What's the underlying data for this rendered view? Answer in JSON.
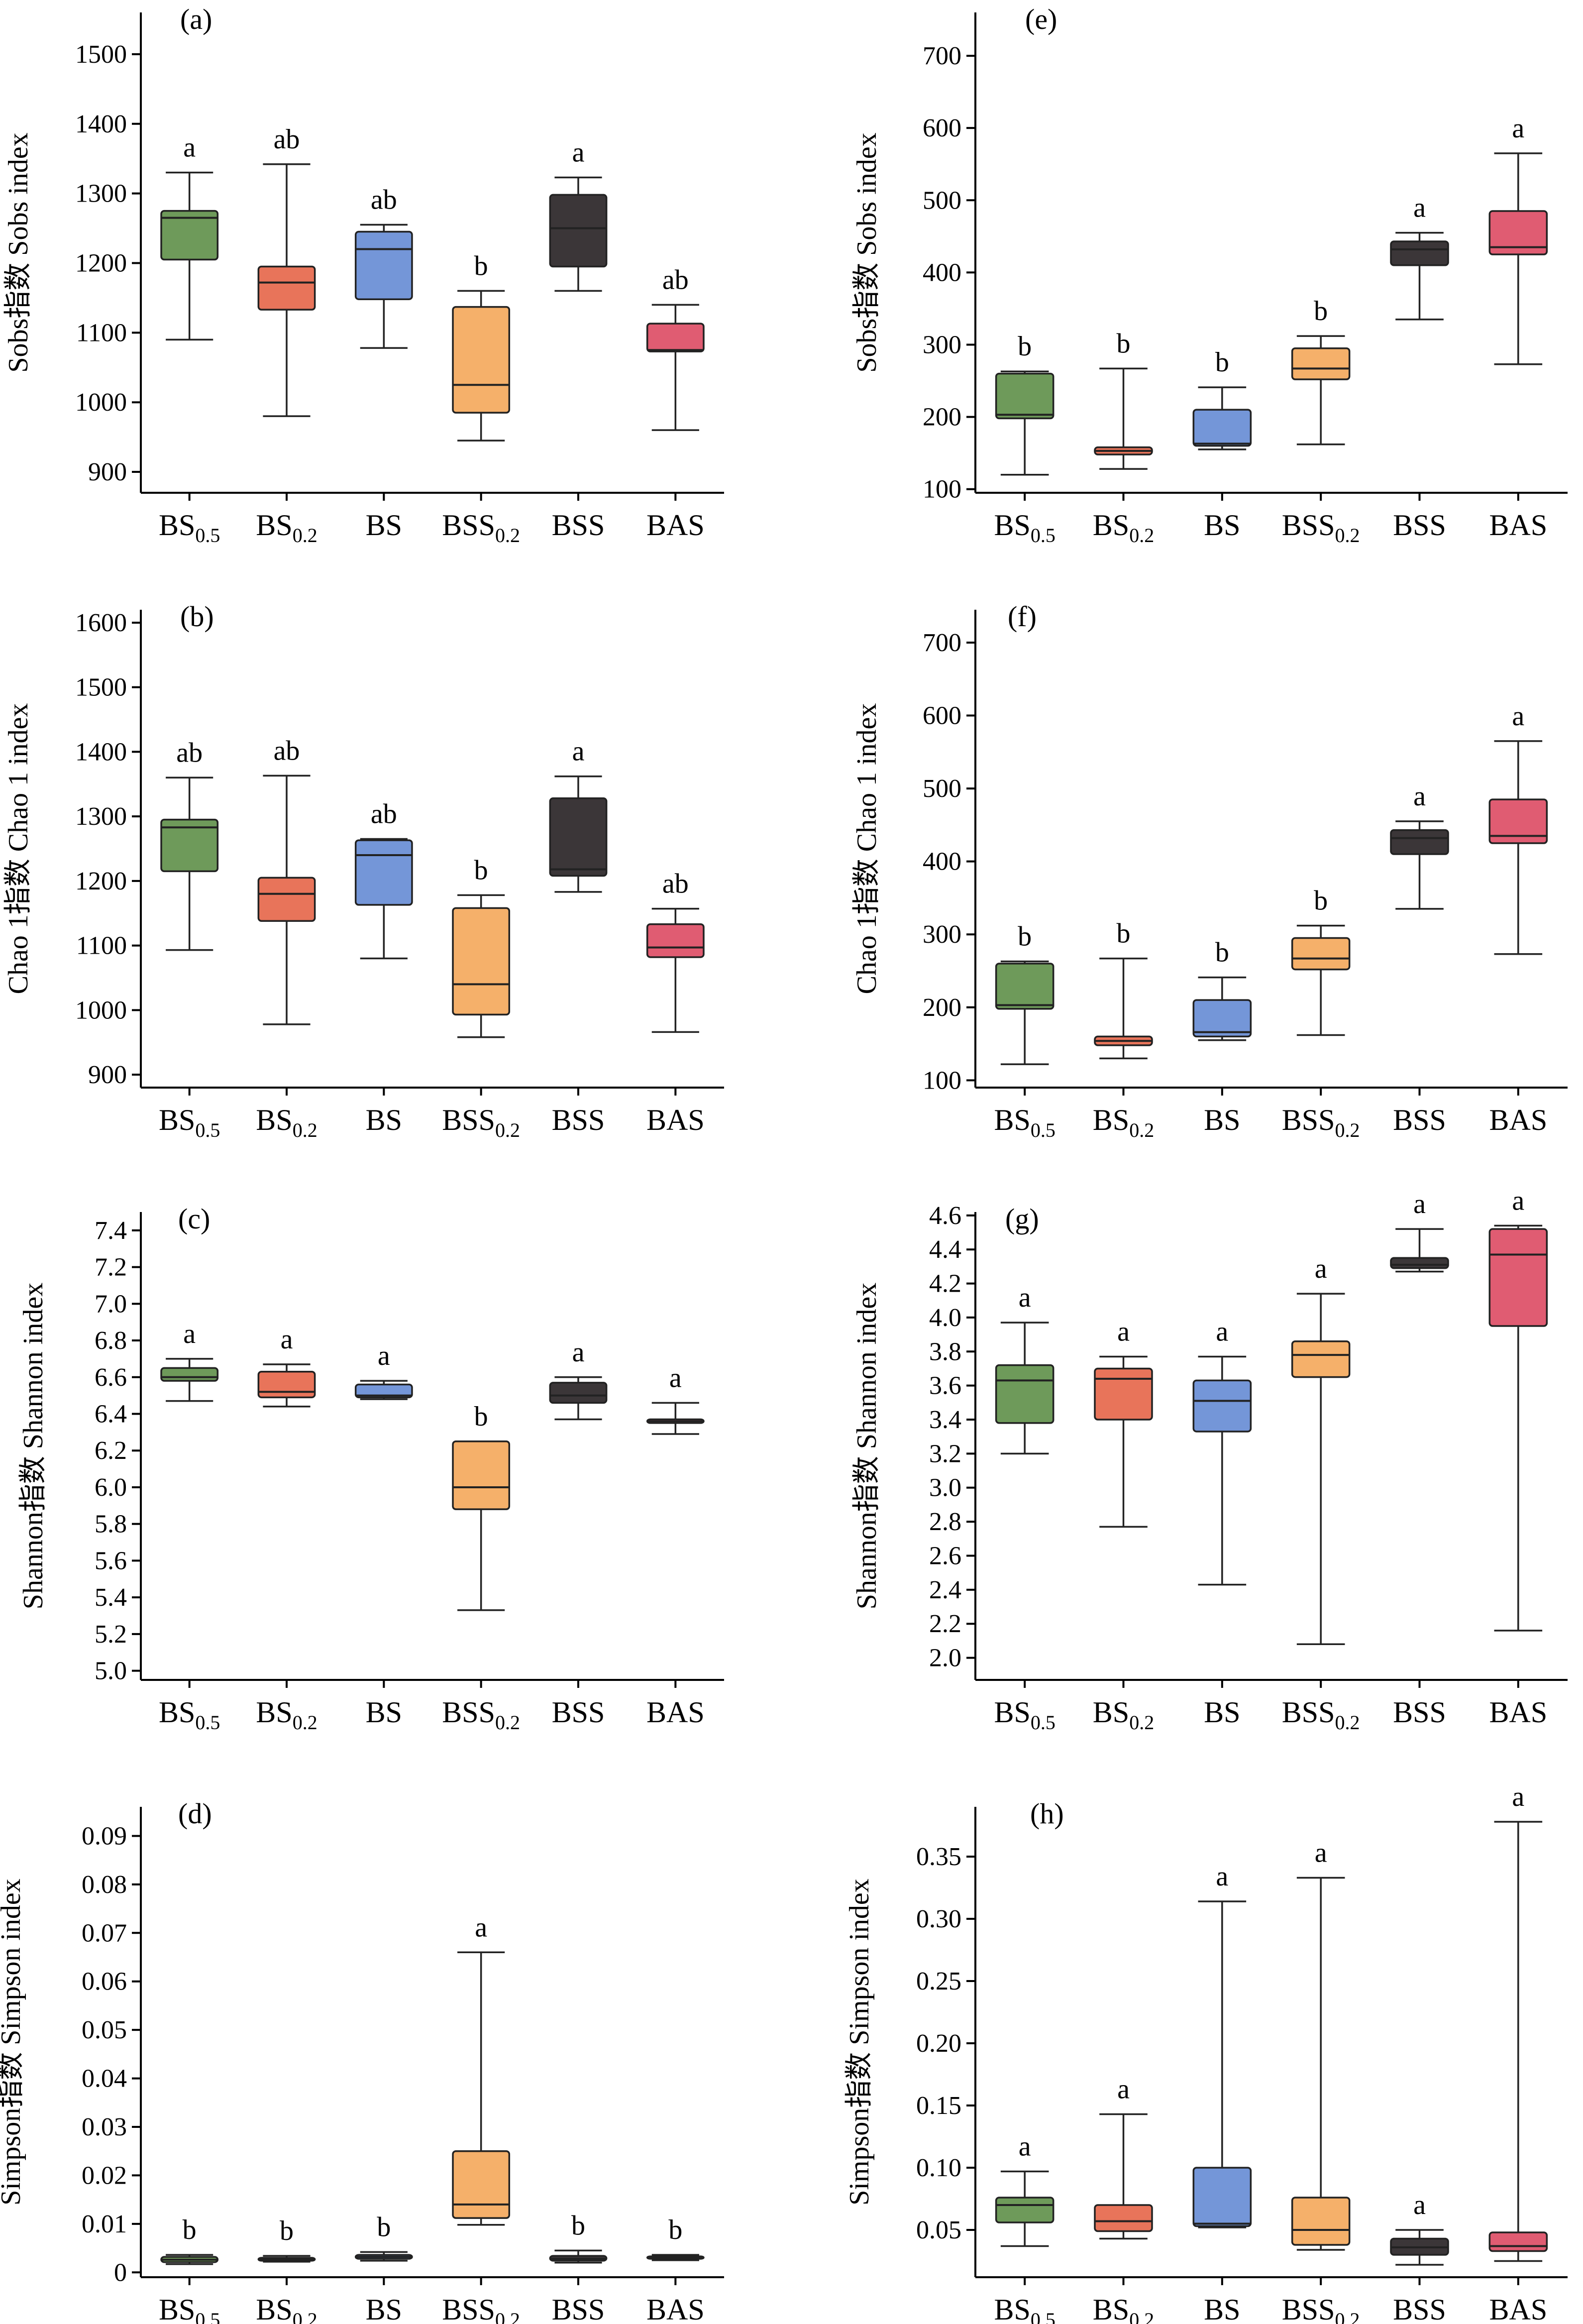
{
  "colors": {
    "BS0.5": "#6e9a5a",
    "BS0.2": "#e8745a",
    "BS": "#7496d8",
    "BSS0.2": "#f5b06a",
    "BSS": "#3b3638",
    "BAS": "#e05c72"
  },
  "chart_data": [
    {
      "type": "box",
      "panel": "(a)",
      "ylabel": "Sobs指数 Sobs index",
      "ylim": [
        870,
        1560
      ],
      "yticks": [
        900,
        1000,
        1100,
        1200,
        1300,
        1400,
        1500
      ],
      "categories": [
        {
          "base": "BS",
          "sub": "0.5"
        },
        {
          "base": "BS",
          "sub": "0.2"
        },
        {
          "base": "BS",
          "sub": ""
        },
        {
          "base": "BSS",
          "sub": "0.2"
        },
        {
          "base": "BSS",
          "sub": ""
        },
        {
          "base": "BAS",
          "sub": ""
        }
      ],
      "boxes": [
        {
          "min": 1090,
          "q1": 1205,
          "median": 1265,
          "q3": 1275,
          "max": 1330,
          "label": "a",
          "color": "BS0.5"
        },
        {
          "min": 980,
          "q1": 1133,
          "median": 1172,
          "q3": 1195,
          "max": 1342,
          "label": "ab",
          "color": "BS0.2"
        },
        {
          "min": 1078,
          "q1": 1148,
          "median": 1220,
          "q3": 1245,
          "max": 1255,
          "label": "ab",
          "color": "BS"
        },
        {
          "min": 945,
          "q1": 985,
          "median": 1025,
          "q3": 1137,
          "max": 1160,
          "label": "b",
          "color": "BSS0.2"
        },
        {
          "min": 1160,
          "q1": 1195,
          "median": 1250,
          "q3": 1298,
          "max": 1323,
          "label": "a",
          "color": "BSS"
        },
        {
          "min": 960,
          "q1": 1073,
          "median": 1075,
          "q3": 1113,
          "max": 1140,
          "label": "ab",
          "color": "BAS"
        }
      ]
    },
    {
      "type": "box",
      "panel": "(e)",
      "ylabel": "Sobs指数 Sobs index",
      "ylim": [
        95,
        760
      ],
      "yticks": [
        100,
        200,
        300,
        400,
        500,
        600,
        700
      ],
      "categories": [
        {
          "base": "BS",
          "sub": "0.5"
        },
        {
          "base": "BS",
          "sub": "0.2"
        },
        {
          "base": "BS",
          "sub": ""
        },
        {
          "base": "BSS",
          "sub": "0.2"
        },
        {
          "base": "BSS",
          "sub": ""
        },
        {
          "base": "BAS",
          "sub": ""
        }
      ],
      "boxes": [
        {
          "min": 120,
          "q1": 198,
          "median": 203,
          "q3": 260,
          "max": 263,
          "label": "b",
          "color": "BS0.5"
        },
        {
          "min": 128,
          "q1": 148,
          "median": 153,
          "q3": 158,
          "max": 267,
          "label": "b",
          "color": "BS0.2"
        },
        {
          "min": 155,
          "q1": 160,
          "median": 163,
          "q3": 210,
          "max": 241,
          "label": "b",
          "color": "BS"
        },
        {
          "min": 162,
          "q1": 252,
          "median": 267,
          "q3": 295,
          "max": 312,
          "label": "b",
          "color": "BSS0.2"
        },
        {
          "min": 335,
          "q1": 410,
          "median": 432,
          "q3": 443,
          "max": 455,
          "label": "a",
          "color": "BSS"
        },
        {
          "min": 273,
          "q1": 425,
          "median": 435,
          "q3": 485,
          "max": 565,
          "label": "a",
          "color": "BAS"
        }
      ]
    },
    {
      "type": "box",
      "panel": "(b)",
      "ylabel": "Chao 1指数 Chao 1 index",
      "ylim": [
        880,
        1620
      ],
      "yticks": [
        900,
        1000,
        1100,
        1200,
        1300,
        1400,
        1500,
        1600
      ],
      "categories": [
        {
          "base": "BS",
          "sub": "0.5"
        },
        {
          "base": "BS",
          "sub": "0.2"
        },
        {
          "base": "BS",
          "sub": ""
        },
        {
          "base": "BSS",
          "sub": "0.2"
        },
        {
          "base": "BSS",
          "sub": ""
        },
        {
          "base": "BAS",
          "sub": ""
        }
      ],
      "boxes": [
        {
          "min": 1093,
          "q1": 1215,
          "median": 1283,
          "q3": 1295,
          "max": 1360,
          "label": "ab",
          "color": "BS0.5"
        },
        {
          "min": 978,
          "q1": 1138,
          "median": 1180,
          "q3": 1205,
          "max": 1363,
          "label": "ab",
          "color": "BS0.2"
        },
        {
          "min": 1080,
          "q1": 1163,
          "median": 1240,
          "q3": 1263,
          "max": 1265,
          "label": "ab",
          "color": "BS"
        },
        {
          "min": 958,
          "q1": 993,
          "median": 1040,
          "q3": 1158,
          "max": 1178,
          "label": "b",
          "color": "BSS0.2"
        },
        {
          "min": 1183,
          "q1": 1208,
          "median": 1218,
          "q3": 1328,
          "max": 1362,
          "label": "a",
          "color": "BSS"
        },
        {
          "min": 966,
          "q1": 1082,
          "median": 1097,
          "q3": 1133,
          "max": 1157,
          "label": "ab",
          "color": "BAS"
        }
      ]
    },
    {
      "type": "box",
      "panel": "(f)",
      "ylabel": "Chao 1指数  Chao 1 index",
      "ylim": [
        90,
        745
      ],
      "yticks": [
        100,
        200,
        300,
        400,
        500,
        600,
        700
      ],
      "categories": [
        {
          "base": "BS",
          "sub": "0.5"
        },
        {
          "base": "BS",
          "sub": "0.2"
        },
        {
          "base": "BS",
          "sub": ""
        },
        {
          "base": "BSS",
          "sub": "0.2"
        },
        {
          "base": "BSS",
          "sub": ""
        },
        {
          "base": "BAS",
          "sub": ""
        }
      ],
      "boxes": [
        {
          "min": 122,
          "q1": 198,
          "median": 203,
          "q3": 260,
          "max": 263,
          "label": "b",
          "color": "BS0.5"
        },
        {
          "min": 130,
          "q1": 148,
          "median": 154,
          "q3": 160,
          "max": 267,
          "label": "b",
          "color": "BS0.2"
        },
        {
          "min": 155,
          "q1": 160,
          "median": 166,
          "q3": 210,
          "max": 241,
          "label": "b",
          "color": "BS"
        },
        {
          "min": 162,
          "q1": 252,
          "median": 267,
          "q3": 295,
          "max": 312,
          "label": "b",
          "color": "BSS0.2"
        },
        {
          "min": 335,
          "q1": 410,
          "median": 432,
          "q3": 443,
          "max": 455,
          "label": "a",
          "color": "BSS"
        },
        {
          "min": 273,
          "q1": 425,
          "median": 435,
          "q3": 485,
          "max": 565,
          "label": "a",
          "color": "BAS"
        }
      ]
    },
    {
      "type": "box",
      "panel": "(c)",
      "ylabel": "Shannon指数 Shannon index",
      "ylim": [
        4.95,
        7.5
      ],
      "yticks": [
        5.0,
        5.2,
        5.4,
        5.6,
        5.8,
        6.0,
        6.2,
        6.4,
        6.6,
        6.8,
        7.0,
        7.2,
        7.4
      ],
      "categories": [
        {
          "base": "BS",
          "sub": "0.5"
        },
        {
          "base": "BS",
          "sub": "0.2"
        },
        {
          "base": "BS",
          "sub": ""
        },
        {
          "base": "BSS",
          "sub": "0.2"
        },
        {
          "base": "BSS",
          "sub": ""
        },
        {
          "base": "BAS",
          "sub": ""
        }
      ],
      "boxes": [
        {
          "min": 6.47,
          "q1": 6.58,
          "median": 6.6,
          "q3": 6.65,
          "max": 6.7,
          "label": "a",
          "color": "BS0.5"
        },
        {
          "min": 6.44,
          "q1": 6.49,
          "median": 6.52,
          "q3": 6.63,
          "max": 6.67,
          "label": "a",
          "color": "BS0.2"
        },
        {
          "min": 6.48,
          "q1": 6.49,
          "median": 6.5,
          "q3": 6.56,
          "max": 6.58,
          "label": "a",
          "color": "BS"
        },
        {
          "min": 5.33,
          "q1": 5.88,
          "median": 6.0,
          "q3": 6.25,
          "max": 6.25,
          "label": "b",
          "color": "BSS0.2"
        },
        {
          "min": 6.37,
          "q1": 6.46,
          "median": 6.5,
          "q3": 6.57,
          "max": 6.6,
          "label": "a",
          "color": "BSS"
        },
        {
          "min": 6.29,
          "q1": 6.35,
          "median": 6.36,
          "q3": 6.37,
          "max": 6.46,
          "label": "a",
          "color": "BAS"
        }
      ]
    },
    {
      "type": "box",
      "panel": "(g)",
      "ylabel": "Shannon指数 Shannon index",
      "ylim": [
        1.87,
        4.62
      ],
      "yticks": [
        2.0,
        2.2,
        2.4,
        2.6,
        2.8,
        3.0,
        3.2,
        3.4,
        3.6,
        3.8,
        4.0,
        4.2,
        4.4,
        4.6
      ],
      "categories": [
        {
          "base": "BS",
          "sub": "0.5"
        },
        {
          "base": "BS",
          "sub": "0.2"
        },
        {
          "base": "BS",
          "sub": ""
        },
        {
          "base": "BSS",
          "sub": "0.2"
        },
        {
          "base": "BSS",
          "sub": ""
        },
        {
          "base": "BAS",
          "sub": ""
        }
      ],
      "boxes": [
        {
          "min": 3.2,
          "q1": 3.38,
          "median": 3.63,
          "q3": 3.72,
          "max": 3.97,
          "label": "a",
          "color": "BS0.5"
        },
        {
          "min": 2.77,
          "q1": 3.4,
          "median": 3.64,
          "q3": 3.7,
          "max": 3.77,
          "label": "a",
          "color": "BS0.2"
        },
        {
          "min": 2.43,
          "q1": 3.33,
          "median": 3.51,
          "q3": 3.63,
          "max": 3.77,
          "label": "a",
          "color": "BS"
        },
        {
          "min": 2.08,
          "q1": 3.65,
          "median": 3.78,
          "q3": 3.86,
          "max": 4.14,
          "label": "a",
          "color": "BSS0.2"
        },
        {
          "min": 4.27,
          "q1": 4.29,
          "median": 4.31,
          "q3": 4.35,
          "max": 4.52,
          "label": "a",
          "color": "BSS"
        },
        {
          "min": 2.16,
          "q1": 3.95,
          "median": 4.37,
          "q3": 4.52,
          "max": 4.54,
          "label": "a",
          "color": "BAS"
        }
      ]
    },
    {
      "type": "box",
      "panel": "(d)",
      "ylabel": "Simpson指数 Simpson index",
      "ylim": [
        -0.001,
        0.096
      ],
      "yticks": [
        0,
        0.01,
        0.02,
        0.03,
        0.04,
        0.05,
        0.06,
        0.07,
        0.08,
        0.09
      ],
      "categories": [
        {
          "base": "BS",
          "sub": "0.5"
        },
        {
          "base": "BS",
          "sub": "0.2"
        },
        {
          "base": "BS",
          "sub": ""
        },
        {
          "base": "BSS",
          "sub": "0.2"
        },
        {
          "base": "BSS",
          "sub": ""
        },
        {
          "base": "BAS",
          "sub": ""
        }
      ],
      "boxes": [
        {
          "min": 0.0017,
          "q1": 0.0021,
          "median": 0.0026,
          "q3": 0.0032,
          "max": 0.0036,
          "label": "b",
          "color": "BS0.5"
        },
        {
          "min": 0.0022,
          "q1": 0.0024,
          "median": 0.0027,
          "q3": 0.003,
          "max": 0.0034,
          "label": "b",
          "color": "BS0.2"
        },
        {
          "min": 0.0024,
          "q1": 0.0028,
          "median": 0.0032,
          "q3": 0.0036,
          "max": 0.0042,
          "label": "b",
          "color": "BS"
        },
        {
          "min": 0.0098,
          "q1": 0.0112,
          "median": 0.014,
          "q3": 0.025,
          "max": 0.066,
          "label": "a",
          "color": "BSS0.2"
        },
        {
          "min": 0.002,
          "q1": 0.0024,
          "median": 0.0028,
          "q3": 0.0034,
          "max": 0.0045,
          "label": "b",
          "color": "BSS"
        },
        {
          "min": 0.0025,
          "q1": 0.0028,
          "median": 0.003,
          "q3": 0.0033,
          "max": 0.0036,
          "label": "b",
          "color": "BAS"
        }
      ]
    },
    {
      "type": "box",
      "panel": "(h)",
      "ylabel": "Simpson指数 Simpson index",
      "ylim": [
        0.012,
        0.39
      ],
      "yticks": [
        0.05,
        0.1,
        0.15,
        0.2,
        0.25,
        0.3,
        0.35
      ],
      "yticklabels": [
        "0.05",
        "0.10",
        "0.15",
        "0.20",
        "0.25",
        "0.30",
        "0.35"
      ],
      "categories": [
        {
          "base": "BS",
          "sub": "0.5"
        },
        {
          "base": "BS",
          "sub": "0.2"
        },
        {
          "base": "BS",
          "sub": ""
        },
        {
          "base": "BSS",
          "sub": "0.2"
        },
        {
          "base": "BSS",
          "sub": ""
        },
        {
          "base": "BAS",
          "sub": ""
        }
      ],
      "boxes": [
        {
          "min": 0.037,
          "q1": 0.056,
          "median": 0.07,
          "q3": 0.076,
          "max": 0.097,
          "label": "a",
          "color": "BS0.5"
        },
        {
          "min": 0.043,
          "q1": 0.049,
          "median": 0.057,
          "q3": 0.07,
          "max": 0.143,
          "label": "a",
          "color": "BS0.2"
        },
        {
          "min": 0.052,
          "q1": 0.053,
          "median": 0.055,
          "q3": 0.1,
          "max": 0.314,
          "label": "a",
          "color": "BS"
        },
        {
          "min": 0.034,
          "q1": 0.038,
          "median": 0.05,
          "q3": 0.076,
          "max": 0.333,
          "label": "a",
          "color": "BSS0.2"
        },
        {
          "min": 0.022,
          "q1": 0.03,
          "median": 0.036,
          "q3": 0.043,
          "max": 0.05,
          "label": "a",
          "color": "BSS"
        },
        {
          "min": 0.025,
          "q1": 0.033,
          "median": 0.037,
          "q3": 0.048,
          "max": 0.378,
          "label": "a",
          "color": "BAS"
        }
      ]
    }
  ]
}
